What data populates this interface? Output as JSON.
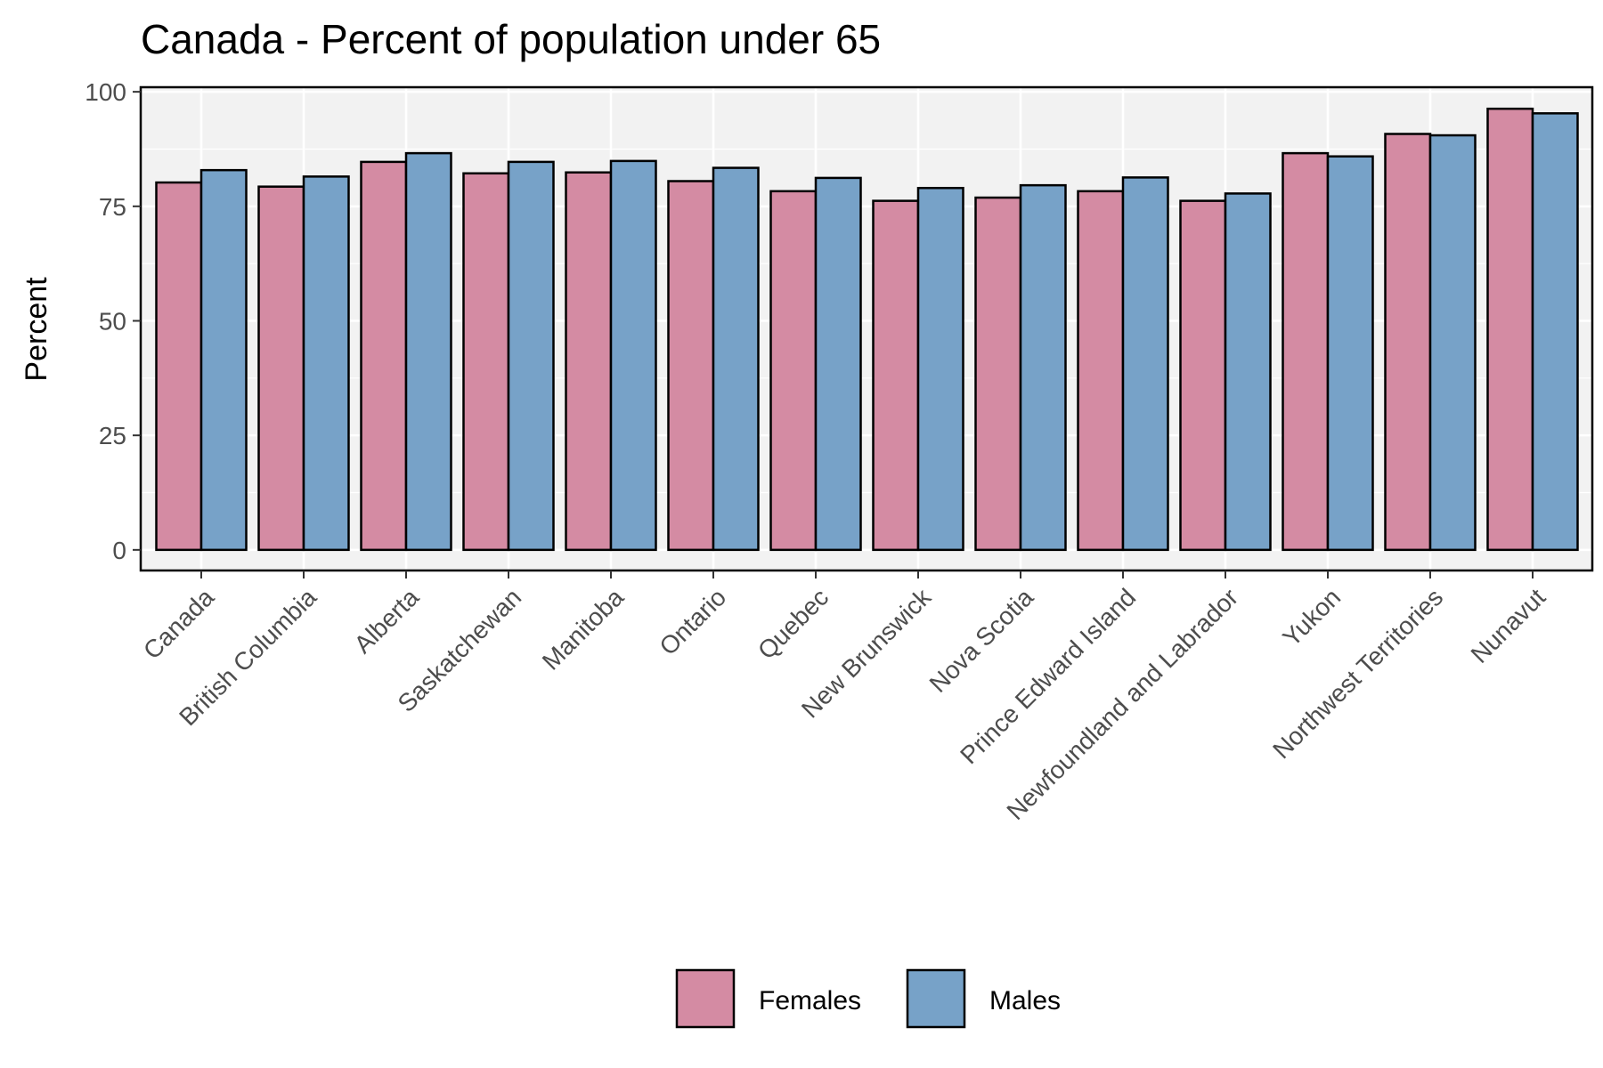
{
  "chart_data": {
    "type": "bar",
    "title": "Canada - Percent of population under 65",
    "xlabel": "",
    "ylabel": "Percent",
    "ylim": [
      -4.5,
      101
    ],
    "yticks": [
      0,
      25,
      50,
      75,
      100
    ],
    "grid": true,
    "legend_position": "bottom",
    "categories": [
      "Canada",
      "British Columbia",
      "Alberta",
      "Saskatchewan",
      "Manitoba",
      "Ontario",
      "Quebec",
      "New Brunswick",
      "Nova Scotia",
      "Prince Edward Island",
      "Newfoundland and Labrador",
      "Yukon",
      "Northwest Territories",
      "Nunavut"
    ],
    "series": [
      {
        "name": "Females",
        "color": "#d48ba3",
        "values": [
          80.2,
          79.3,
          84.7,
          82.2,
          82.4,
          80.5,
          78.3,
          76.2,
          76.9,
          78.3,
          76.2,
          86.6,
          90.8,
          96.3
        ]
      },
      {
        "name": "Males",
        "color": "#77a2c8",
        "values": [
          82.9,
          81.5,
          86.6,
          84.7,
          84.9,
          83.4,
          81.2,
          79.0,
          79.6,
          81.3,
          77.8,
          85.9,
          90.5,
          95.3
        ]
      }
    ]
  }
}
